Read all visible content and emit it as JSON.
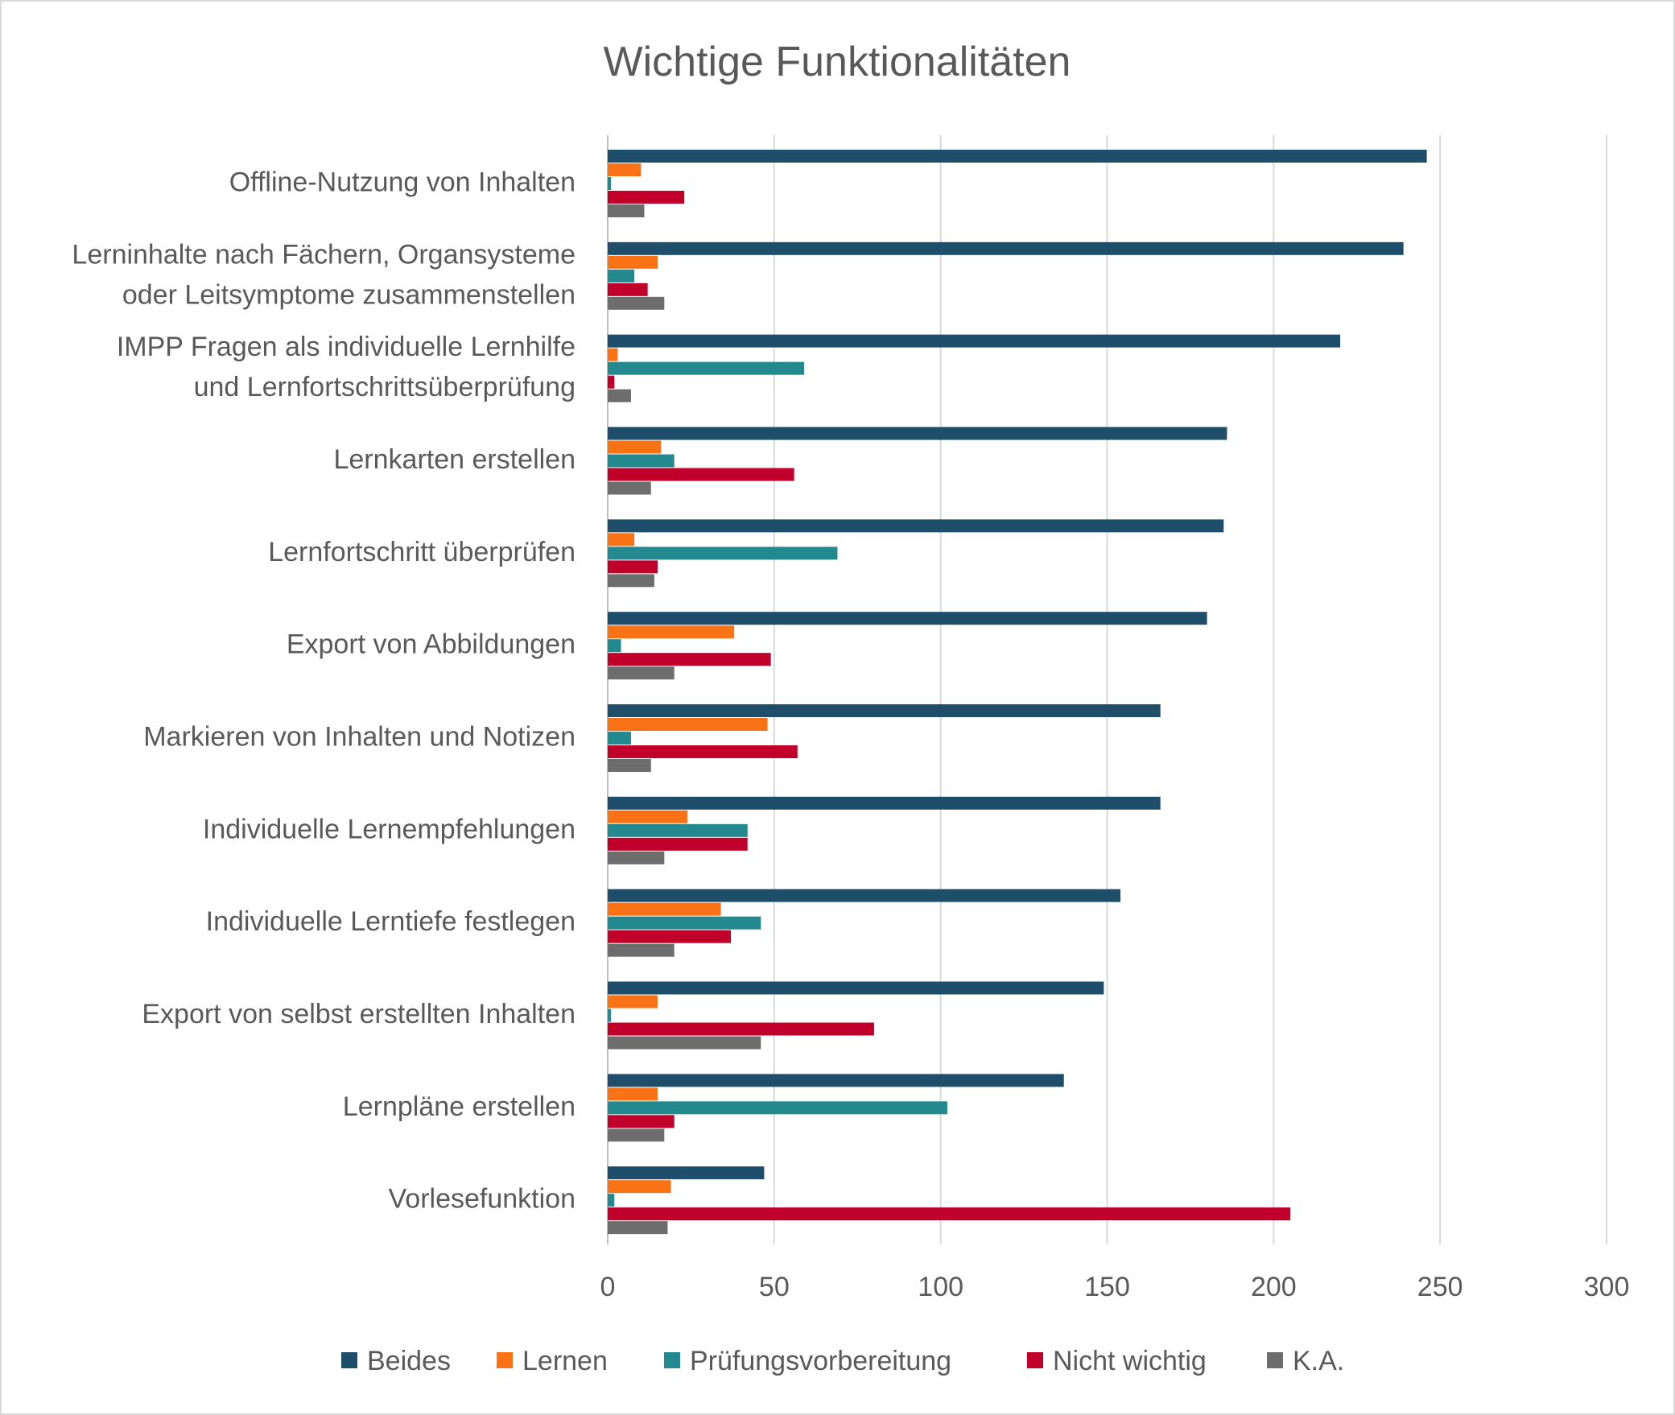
{
  "chart_data": {
    "type": "bar",
    "orientation": "horizontal",
    "title": "Wichtige Funktionalitäten",
    "xlim": [
      0,
      300
    ],
    "xticks": [
      0,
      50,
      100,
      150,
      200,
      250,
      300
    ],
    "grid": true,
    "legend_position": "bottom",
    "categories": [
      [
        "Offline-Nutzung von Inhalten"
      ],
      [
        "Lerninhalte nach Fächern, Organsysteme",
        "oder Leitsymptome zusammenstellen"
      ],
      [
        "IMPP Fragen als individuelle Lernhilfe",
        "und Lernfortschrittsüberprüfung"
      ],
      [
        "Lernkarten erstellen"
      ],
      [
        "Lernfortschritt überprüfen"
      ],
      [
        "Export von Abbildungen"
      ],
      [
        "Markieren von Inhalten und Notizen"
      ],
      [
        "Individuelle Lernempfehlungen"
      ],
      [
        "Individuelle Lerntiefe festlegen"
      ],
      [
        "Export von selbst erstellten Inhalten"
      ],
      [
        "Lernpläne erstellen"
      ],
      [
        "Vorlesefunktion"
      ]
    ],
    "series": [
      {
        "name": "Beides",
        "color": "#1f4e6b",
        "values": [
          246,
          239,
          220,
          186,
          185,
          180,
          166,
          166,
          154,
          149,
          137,
          47
        ]
      },
      {
        "name": "Lernen",
        "color": "#f97316",
        "values": [
          10,
          15,
          3,
          16,
          8,
          38,
          48,
          24,
          34,
          15,
          15,
          19
        ]
      },
      {
        "name": "Prüfungsvorbereitung",
        "color": "#23898e",
        "values": [
          1,
          8,
          59,
          20,
          69,
          4,
          7,
          42,
          46,
          1,
          102,
          2
        ]
      },
      {
        "name": "Nicht wichtig",
        "color": "#c0002b",
        "values": [
          23,
          12,
          2,
          56,
          15,
          49,
          57,
          42,
          37,
          80,
          20,
          205
        ]
      },
      {
        "name": "K.A.",
        "color": "#6d6d6d",
        "values": [
          11,
          17,
          7,
          13,
          14,
          20,
          13,
          17,
          20,
          46,
          17,
          18
        ]
      }
    ]
  }
}
